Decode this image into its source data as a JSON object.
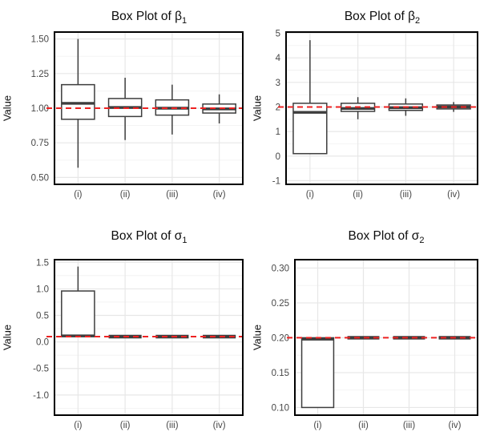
{
  "colors": {
    "background": "#ffffff",
    "box_stroke": "#3d3d3d",
    "box_fill": "#ffffff",
    "ref_line": "#ee2222",
    "grid_major": "#e7e7e7",
    "grid_minor": "#f2f2f2",
    "panel_border": "#000000",
    "tick_text": "#474747",
    "title_text": "#0d0d0d"
  },
  "chart_data": [
    {
      "type": "box",
      "title_main": "Box Plot of β",
      "title_sub": "1",
      "ylabel": "Value",
      "categories": [
        "(i)",
        "(ii)",
        "(iii)",
        "(iv)"
      ],
      "y_tick_labels": [
        "0.50",
        "0.75",
        "1.00",
        "1.25",
        "1.50"
      ],
      "y_tick_values": [
        0.5,
        0.75,
        1.0,
        1.25,
        1.5
      ],
      "y_range": [
        0.45,
        1.55
      ],
      "ref_value": 1.0,
      "grid": "major-y, minor-y, major-x",
      "legend": "none",
      "boxes": [
        {
          "whisker_low": 0.57,
          "q1": 0.92,
          "median": 1.035,
          "q3": 1.17,
          "whisker_high": 1.5
        },
        {
          "whisker_low": 0.77,
          "q1": 0.94,
          "median": 1.005,
          "q3": 1.07,
          "whisker_high": 1.22
        },
        {
          "whisker_low": 0.81,
          "q1": 0.95,
          "median": 1.0,
          "q3": 1.06,
          "whisker_high": 1.17
        },
        {
          "whisker_low": 0.89,
          "q1": 0.965,
          "median": 0.995,
          "q3": 1.03,
          "whisker_high": 1.1
        }
      ]
    },
    {
      "type": "box",
      "title_main": "Box Plot of β",
      "title_sub": "2",
      "ylabel": "Value",
      "categories": [
        "(i)",
        "(ii)",
        "(iii)",
        "(iv)"
      ],
      "y_tick_labels": [
        "-1",
        "0",
        "1",
        "2",
        "3",
        "4",
        "5"
      ],
      "y_tick_values": [
        -1,
        0,
        1,
        2,
        3,
        4,
        5
      ],
      "y_range": [
        -1.15,
        5.05
      ],
      "ref_value": 2,
      "grid": "major-y, minor-y, major-x",
      "legend": "none",
      "boxes": [
        {
          "whisker_low": null,
          "q1": 0.1,
          "median": 1.78,
          "q3": 2.15,
          "whisker_high": 4.72
        },
        {
          "whisker_low": 1.5,
          "q1": 1.82,
          "median": 1.94,
          "q3": 2.15,
          "whisker_high": 2.4
        },
        {
          "whisker_low": 1.64,
          "q1": 1.86,
          "median": 1.97,
          "q3": 2.12,
          "whisker_high": 2.35
        },
        {
          "whisker_low": 1.8,
          "q1": 1.92,
          "median": 2.0,
          "q3": 2.08,
          "whisker_high": 2.2
        }
      ]
    },
    {
      "type": "box",
      "title_main": "Box Plot of σ",
      "title_sub": "1",
      "ylabel": "Value",
      "categories": [
        "(i)",
        "(ii)",
        "(iii)",
        "(iv)"
      ],
      "y_tick_labels": [
        "-1.0",
        "-0.5",
        "0.0",
        "0.5",
        "1.0",
        "1.5"
      ],
      "y_tick_values": [
        -1.0,
        -0.5,
        0.0,
        0.5,
        1.0,
        1.5
      ],
      "y_range": [
        -1.38,
        1.55
      ],
      "ref_value": 0.1,
      "grid": "major-y, minor-y, major-x",
      "legend": "none",
      "boxes": [
        {
          "whisker_low": null,
          "q1": 0.1,
          "median": 0.115,
          "q3": 0.96,
          "whisker_high": 1.42
        },
        {
          "whisker_low": null,
          "q1": 0.1,
          "median": 0.1,
          "q3": 0.1,
          "whisker_high": null
        },
        {
          "whisker_low": null,
          "q1": 0.1,
          "median": 0.1,
          "q3": 0.1,
          "whisker_high": null
        },
        {
          "whisker_low": null,
          "q1": 0.1,
          "median": 0.1,
          "q3": 0.1,
          "whisker_high": null
        }
      ]
    },
    {
      "type": "box",
      "title_main": "Box Plot of σ",
      "title_sub": "2",
      "ylabel": "Value",
      "categories": [
        "(i)",
        "(ii)",
        "(iii)",
        "(iv)"
      ],
      "y_tick_labels": [
        "0.10",
        "0.15",
        "0.20",
        "0.25",
        "0.30"
      ],
      "y_tick_values": [
        0.1,
        0.15,
        0.2,
        0.25,
        0.3
      ],
      "y_range": [
        0.089,
        0.312
      ],
      "ref_value": 0.2,
      "grid": "major-y, minor-y, major-x",
      "legend": "none",
      "boxes": [
        {
          "whisker_low": null,
          "q1": 0.1,
          "median": 0.198,
          "q3": 0.2,
          "whisker_high": null
        },
        {
          "whisker_low": null,
          "q1": 0.2,
          "median": 0.2,
          "q3": 0.2,
          "whisker_high": null
        },
        {
          "whisker_low": null,
          "q1": 0.2,
          "median": 0.2,
          "q3": 0.2,
          "whisker_high": null
        },
        {
          "whisker_low": null,
          "q1": 0.2,
          "median": 0.2,
          "q3": 0.2,
          "whisker_high": null
        }
      ]
    }
  ]
}
